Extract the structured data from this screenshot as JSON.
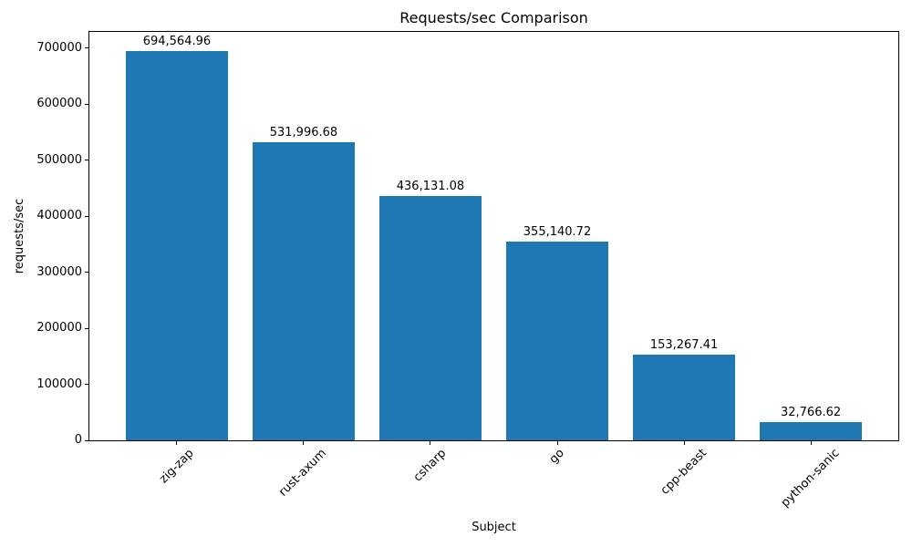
{
  "chart_data": {
    "type": "bar",
    "title": "Requests/sec Comparison",
    "xlabel": "Subject",
    "ylabel": "requests/sec",
    "categories": [
      "zig-zap",
      "rust-axum",
      "csharp",
      "go",
      "cpp-beast",
      "python-sanic"
    ],
    "values": [
      694564.96,
      531996.68,
      436131.08,
      355140.72,
      153267.41,
      32766.62
    ],
    "value_labels": [
      "694,564.96",
      "531,996.68",
      "436,131.08",
      "355,140.72",
      "153,267.41",
      "32,766.62"
    ],
    "bar_color": "#1f77b4",
    "ylim": [
      0,
      729293
    ],
    "yticks": [
      0,
      100000,
      200000,
      300000,
      400000,
      500000,
      600000,
      700000
    ],
    "grid": false,
    "legend": null,
    "background_color": "#ffffff"
  }
}
